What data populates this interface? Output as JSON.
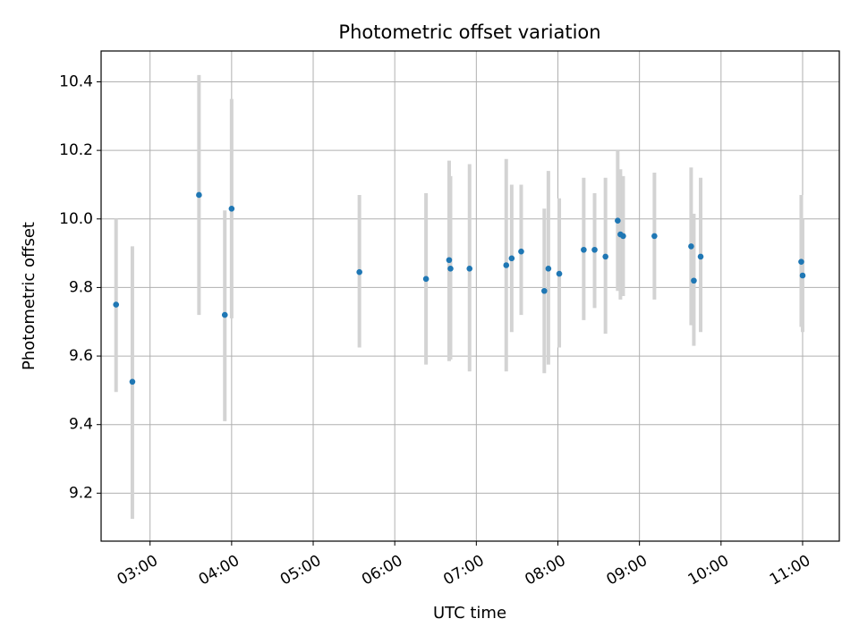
{
  "chart_data": {
    "type": "scatter",
    "title": "Photometric offset variation",
    "xlabel": "UTC time",
    "ylabel": "Photometric offset",
    "x_axis_type": "time",
    "xlim": [
      "02:24",
      "11:27"
    ],
    "ylim": [
      9.06,
      10.49
    ],
    "xticks": [
      "03:00",
      "04:00",
      "05:00",
      "06:00",
      "07:00",
      "08:00",
      "09:00",
      "10:00",
      "11:00"
    ],
    "yticks": [
      9.2,
      9.4,
      9.6,
      9.8,
      10.0,
      10.2,
      10.4
    ],
    "ytick_labels": [
      "9.2",
      "9.4",
      "9.6",
      "9.8",
      "10.0",
      "10.2",
      "10.4"
    ],
    "grid": true,
    "point_color": "#1f77b4",
    "errorbar_color": "#d3d3d3",
    "series": [
      {
        "points": [
          {
            "x": "02:35",
            "y": 9.75,
            "ylow": 9.495,
            "yhigh": 10.0
          },
          {
            "x": "02:47",
            "y": 9.525,
            "ylow": 9.125,
            "yhigh": 9.92
          },
          {
            "x": "03:36",
            "y": 10.07,
            "ylow": 9.72,
            "yhigh": 10.42
          },
          {
            "x": "03:55",
            "y": 9.72,
            "ylow": 9.41,
            "yhigh": 10.025
          },
          {
            "x": "04:00",
            "y": 10.03,
            "ylow": 9.71,
            "yhigh": 10.35
          },
          {
            "x": "05:34",
            "y": 9.845,
            "ylow": 9.625,
            "yhigh": 10.07
          },
          {
            "x": "06:23",
            "y": 9.825,
            "ylow": 9.575,
            "yhigh": 10.075
          },
          {
            "x": "06:40",
            "y": 9.88,
            "ylow": 9.585,
            "yhigh": 10.17
          },
          {
            "x": "06:41",
            "y": 9.855,
            "ylow": 9.59,
            "yhigh": 10.125
          },
          {
            "x": "06:55",
            "y": 9.855,
            "ylow": 9.555,
            "yhigh": 10.16
          },
          {
            "x": "07:22",
            "y": 9.865,
            "ylow": 9.555,
            "yhigh": 10.175
          },
          {
            "x": "07:26",
            "y": 9.885,
            "ylow": 9.67,
            "yhigh": 10.1
          },
          {
            "x": "07:33",
            "y": 9.905,
            "ylow": 9.72,
            "yhigh": 10.1
          },
          {
            "x": "07:50",
            "y": 9.79,
            "ylow": 9.55,
            "yhigh": 10.03
          },
          {
            "x": "07:53",
            "y": 9.855,
            "ylow": 9.575,
            "yhigh": 10.14
          },
          {
            "x": "08:01",
            "y": 9.84,
            "ylow": 9.625,
            "yhigh": 10.06
          },
          {
            "x": "08:19",
            "y": 9.91,
            "ylow": 9.705,
            "yhigh": 10.12
          },
          {
            "x": "08:27",
            "y": 9.91,
            "ylow": 9.74,
            "yhigh": 10.075
          },
          {
            "x": "08:35",
            "y": 9.89,
            "ylow": 9.665,
            "yhigh": 10.12
          },
          {
            "x": "08:44",
            "y": 9.995,
            "ylow": 9.79,
            "yhigh": 10.2
          },
          {
            "x": "08:46",
            "y": 9.955,
            "ylow": 9.765,
            "yhigh": 10.145
          },
          {
            "x": "08:48",
            "y": 9.95,
            "ylow": 9.775,
            "yhigh": 10.125
          },
          {
            "x": "09:11",
            "y": 9.95,
            "ylow": 9.765,
            "yhigh": 10.135
          },
          {
            "x": "09:38",
            "y": 9.92,
            "ylow": 9.69,
            "yhigh": 10.15
          },
          {
            "x": "09:40",
            "y": 9.82,
            "ylow": 9.63,
            "yhigh": 10.015
          },
          {
            "x": "09:45",
            "y": 9.89,
            "ylow": 9.67,
            "yhigh": 10.12
          },
          {
            "x": "10:59",
            "y": 9.875,
            "ylow": 9.685,
            "yhigh": 10.07
          },
          {
            "x": "11:00",
            "y": 9.835,
            "ylow": 9.67,
            "yhigh": 10.0
          }
        ]
      }
    ]
  }
}
